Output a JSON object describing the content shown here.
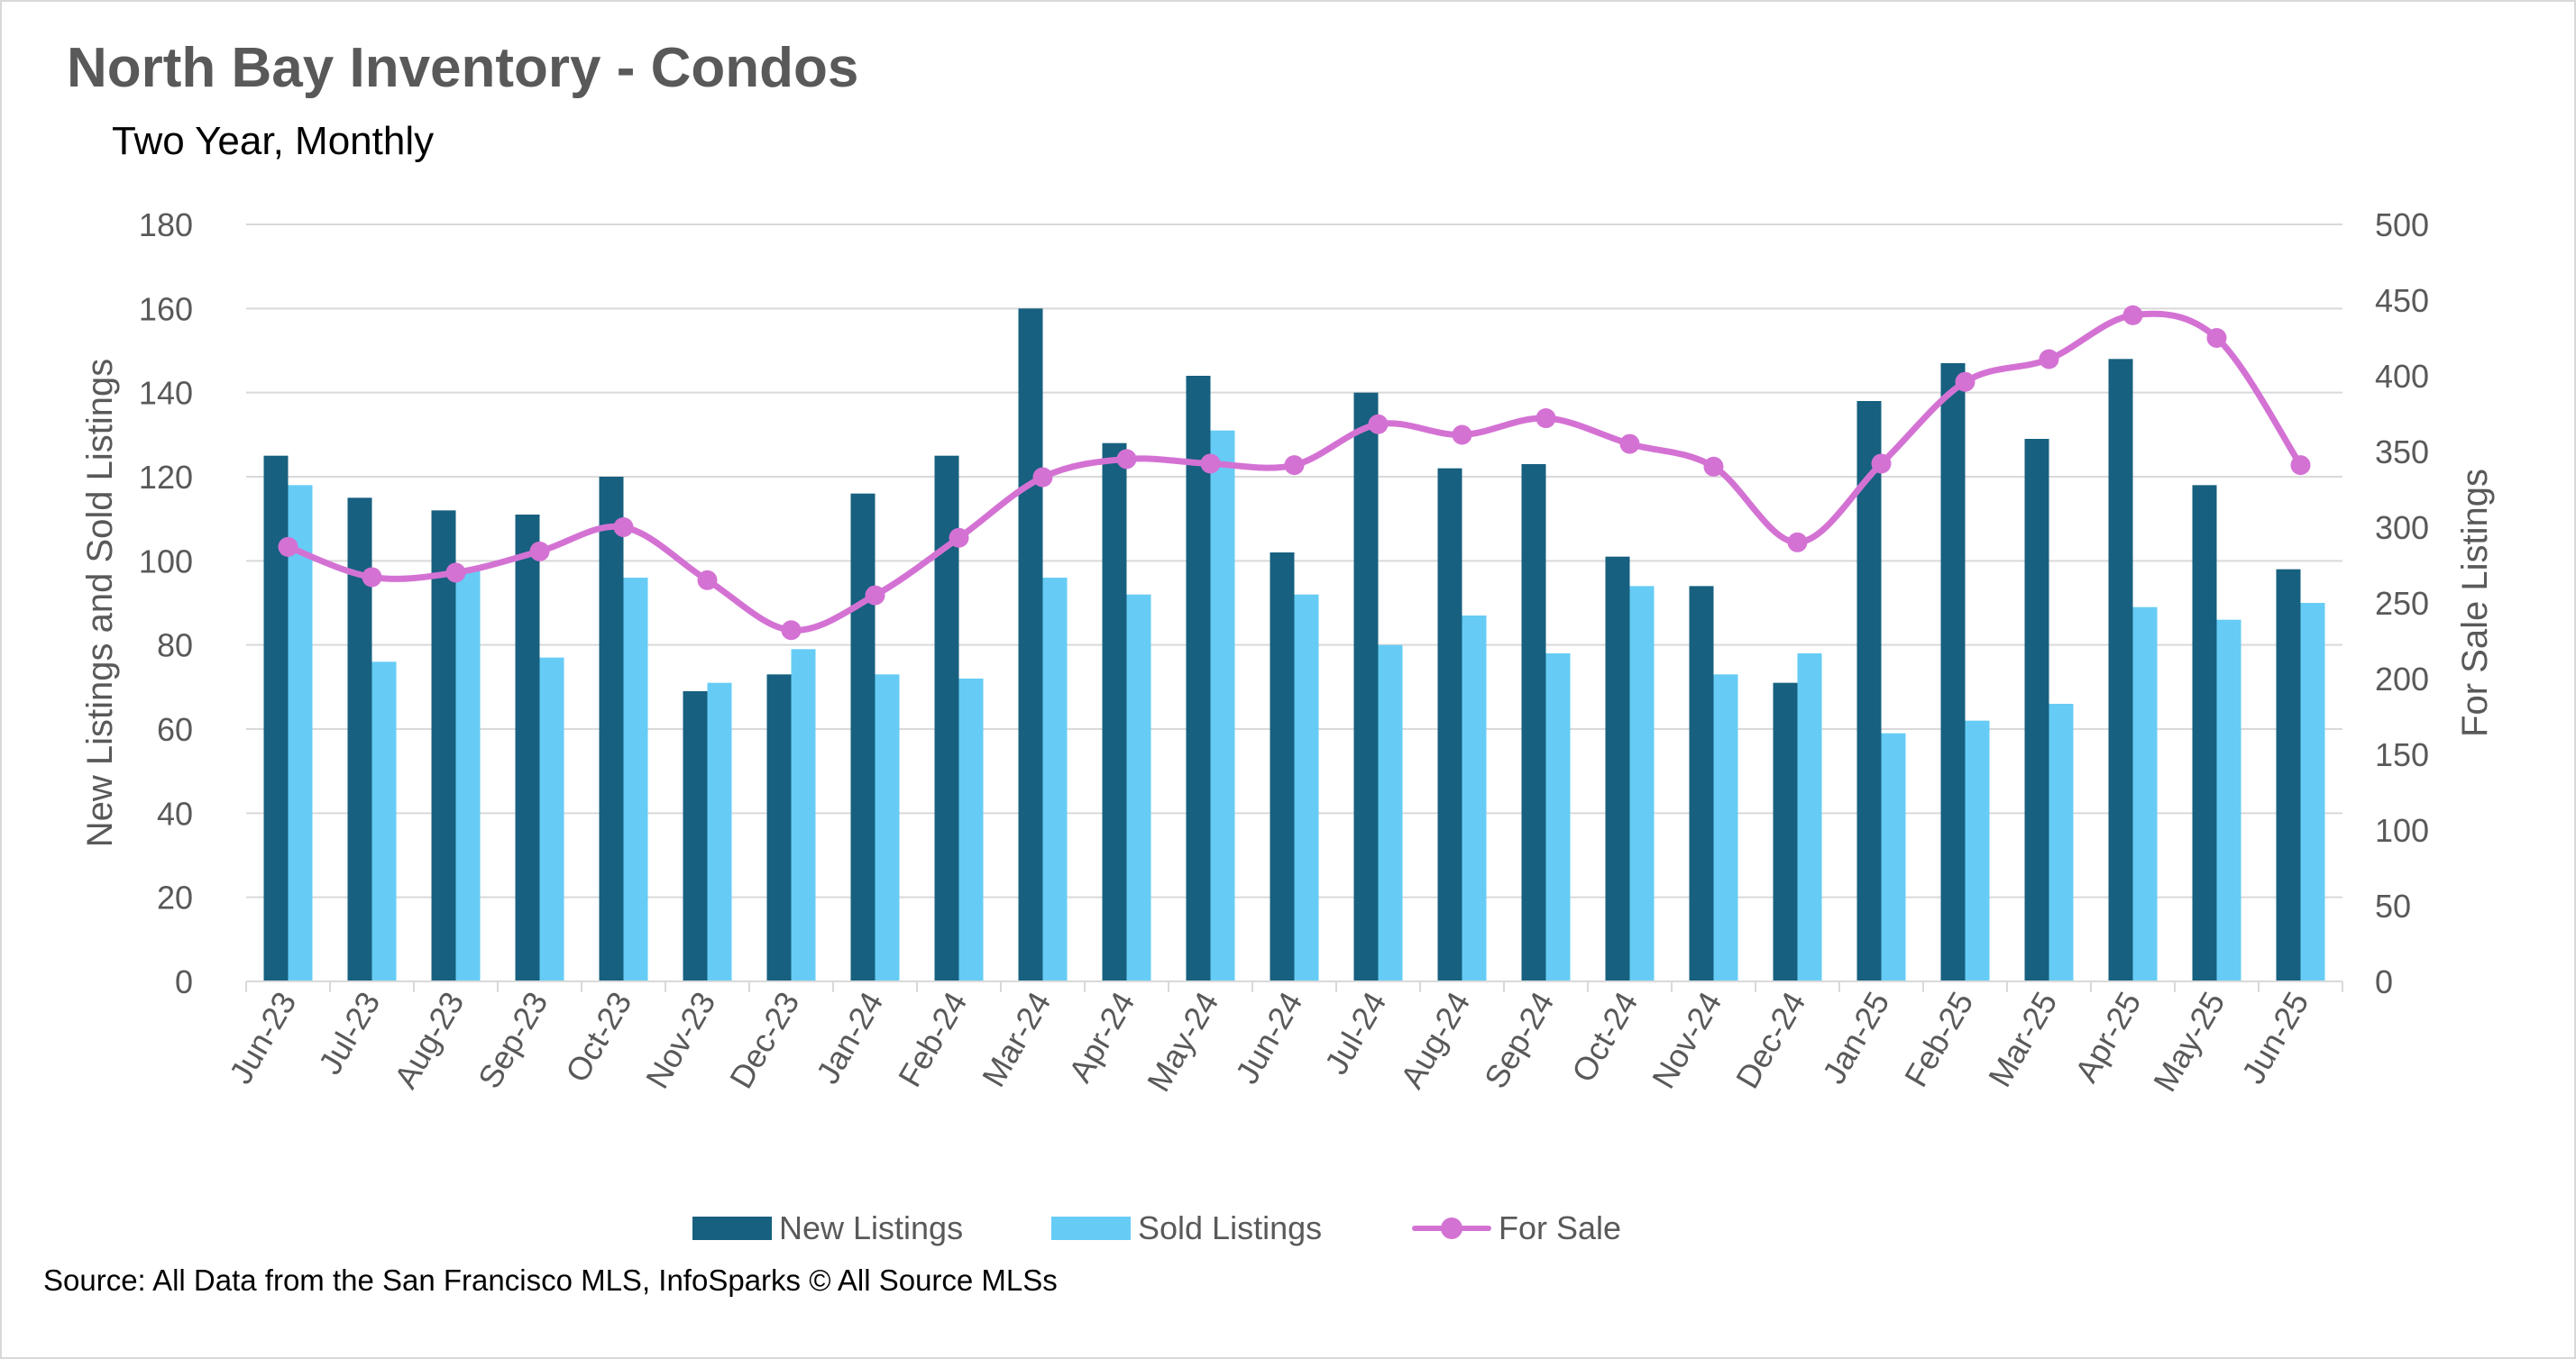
{
  "title": "North Bay Inventory - Condos",
  "subtitle": "Two Year, Monthly",
  "source": "Source: All Data from the San Francisco MLS, InfoSparks © All Source MLSs",
  "colors": {
    "new_listings": "#17607f",
    "sold_listings": "#66ccf5",
    "for_sale": "#d472d4",
    "grid": "#d9d9d9",
    "axis_text": "#595959"
  },
  "chart_data": {
    "type": "bar",
    "title": "North Bay Inventory - Condos",
    "subtitle": "Two Year, Monthly",
    "categories": [
      "Jun-23",
      "Jul-23",
      "Aug-23",
      "Sep-23",
      "Oct-23",
      "Nov-23",
      "Dec-23",
      "Jan-24",
      "Feb-24",
      "Mar-24",
      "Apr-24",
      "May-24",
      "Jun-24",
      "Jul-24",
      "Aug-24",
      "Sep-24",
      "Oct-24",
      "Nov-24",
      "Dec-24",
      "Jan-25",
      "Feb-25",
      "Mar-25",
      "Apr-25",
      "May-25",
      "Jun-25"
    ],
    "ylabel": "New Listings and Sold Listings",
    "y2label": "For Sale Listings",
    "ylim": [
      0,
      180
    ],
    "y2lim": [
      0,
      500
    ],
    "yticks": [
      "0",
      "20",
      "40",
      "60",
      "80",
      "100",
      "120",
      "140",
      "160",
      "180"
    ],
    "y2ticks": [
      "0",
      "50",
      "100",
      "150",
      "200",
      "250",
      "300",
      "350",
      "400",
      "450",
      "500"
    ],
    "grid": true,
    "legend_position": "bottom",
    "series": [
      {
        "name": "New Listings",
        "type": "bar",
        "axis": "left",
        "values": [
          125,
          115,
          112,
          111,
          120,
          69,
          73,
          116,
          125,
          160,
          128,
          144,
          102,
          140,
          122,
          123,
          101,
          94,
          71,
          138,
          147,
          129,
          148,
          118,
          98
        ]
      },
      {
        "name": "Sold Listings",
        "type": "bar",
        "axis": "left",
        "values": [
          118,
          76,
          98,
          77,
          96,
          71,
          79,
          73,
          72,
          96,
          92,
          131,
          92,
          80,
          87,
          78,
          94,
          73,
          78,
          59,
          62,
          66,
          89,
          86,
          90
        ]
      },
      {
        "name": "For Sale",
        "type": "line",
        "axis": "right",
        "smooth": true,
        "markers": true,
        "values": [
          287,
          267,
          270,
          284,
          300,
          265,
          232,
          255,
          293,
          333,
          345,
          342,
          341,
          368,
          361,
          372,
          355,
          340,
          290,
          342,
          396,
          411,
          440,
          425,
          341
        ]
      }
    ]
  }
}
